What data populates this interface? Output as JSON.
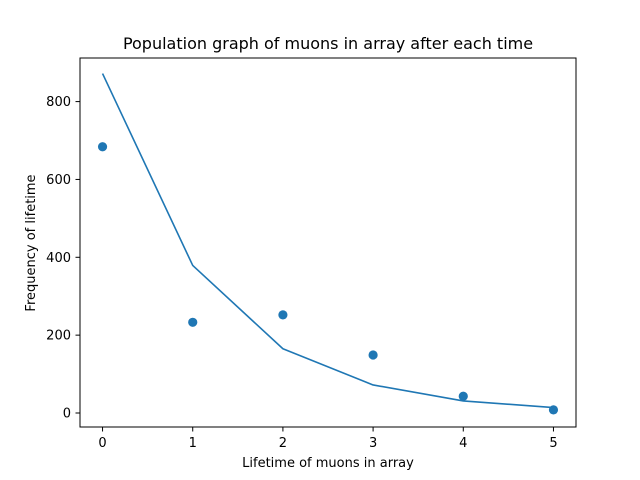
{
  "chart_data": {
    "type": "line",
    "title": "Population graph of muons in array after each time",
    "xlabel": "Lifetime of muons in array",
    "ylabel": "Frequency of lifetime",
    "xlim": [
      -0.25,
      5.25
    ],
    "ylim": [
      -36,
      912
    ],
    "x_ticks": [
      0,
      1,
      2,
      3,
      4,
      5
    ],
    "y_ticks": [
      0,
      200,
      400,
      600,
      800
    ],
    "grid": false,
    "series": [
      {
        "kind": "scatter",
        "color": "#1f77b4",
        "x": [
          0,
          1,
          2,
          3,
          4,
          5
        ],
        "y": [
          684,
          233,
          252,
          149,
          43,
          8
        ]
      },
      {
        "kind": "line",
        "color": "#1f77b4",
        "x": [
          0,
          1,
          2,
          3,
          4,
          5
        ],
        "y": [
          872,
          379,
          165,
          72,
          31,
          14
        ]
      }
    ]
  }
}
